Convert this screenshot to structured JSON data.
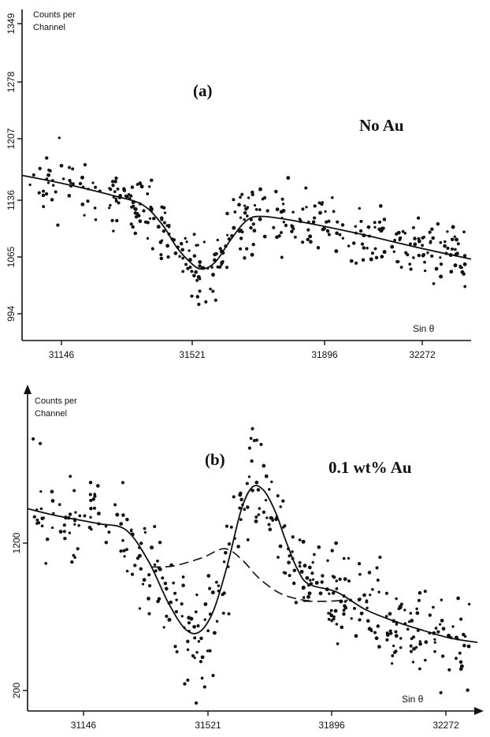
{
  "chart_data": [
    {
      "type": "scatter",
      "panel_label": "(a)",
      "condition": "No Au",
      "ylabel": [
        "Counts per",
        "Channel"
      ],
      "xlabel": "Sin θ",
      "yticks": [
        "1349",
        "1278",
        "1207",
        "1136",
        "1065",
        "994"
      ],
      "xticks": [
        "31146",
        "31521",
        "31896",
        "32272"
      ],
      "xlim": [
        30900,
        32500
      ],
      "ylim": [
        957,
        1360
      ],
      "grid": false,
      "series": [
        {
          "kind": "fit-solid",
          "x": [
            30900,
            31060,
            31230,
            31330,
            31400,
            31450,
            31500,
            31540,
            31590,
            31640,
            31700,
            31760,
            31900,
            32100,
            32300,
            32500
          ],
          "y": [
            1158,
            1147,
            1133,
            1122,
            1098,
            1071,
            1052,
            1044,
            1053,
            1078,
            1103,
            1108,
            1101,
            1087,
            1071,
            1056
          ]
        }
      ],
      "scatter": {
        "count": 380,
        "noise": 36,
        "seed": 11,
        "low_outliers": [
          [
            31530,
            1001
          ],
          [
            31555,
            1004
          ],
          [
            31505,
            1011
          ],
          [
            31580,
            1017
          ],
          [
            31590,
            1006
          ]
        ]
      }
    },
    {
      "type": "scatter",
      "panel_label": "(b)",
      "condition": "0.1 wt% Au",
      "ylabel": [
        "Counts per",
        "Channel"
      ],
      "xlabel": "Sin θ",
      "yticks": [
        "1200",
        "200"
      ],
      "xticks": [
        "31146",
        "31521",
        "31896",
        "32272"
      ],
      "xlim": [
        30900,
        32500
      ],
      "ylim": [
        100,
        1500
      ],
      "grid": false,
      "series": [
        {
          "kind": "fit-solid",
          "x": [
            30900,
            31000,
            31150,
            31250,
            31330,
            31400,
            31460,
            31510,
            31560,
            31610,
            31660,
            31700,
            31740,
            31780,
            31820,
            31860,
            31900,
            32000,
            32100,
            32200,
            32300,
            32400,
            32500
          ],
          "y": [
            985,
            955,
            920,
            892,
            755,
            575,
            460,
            445,
            535,
            735,
            980,
            1080,
            1065,
            975,
            840,
            720,
            655,
            620,
            545,
            495,
            455,
            420,
            400
          ]
        },
        {
          "kind": "fit-dashed",
          "x": [
            31340,
            31420,
            31520,
            31600,
            31660,
            31720,
            31790,
            31860,
            31920
          ],
          "y": [
            730,
            735,
            770,
            810,
            765,
            685,
            620,
            590,
            580
          ]
        },
        {
          "kind": "fit-dashed",
          "x": [
            31880,
            31960,
            32040
          ],
          "y": [
            580,
            580,
            585
          ]
        }
      ],
      "scatter": {
        "count": 390,
        "noise": 185,
        "seed": 37,
        "low_outliers": [
          [
            31500,
            135
          ],
          [
            31470,
            235
          ],
          [
            31530,
            205
          ],
          [
            31560,
            255
          ],
          [
            32370,
            180
          ],
          [
            32400,
            280
          ]
        ],
        "high_outliers": [
          [
            31700,
            1335
          ],
          [
            31715,
            1285
          ],
          [
            31690,
            1250
          ],
          [
            30920,
            1290
          ],
          [
            30945,
            1270
          ]
        ]
      }
    }
  ]
}
